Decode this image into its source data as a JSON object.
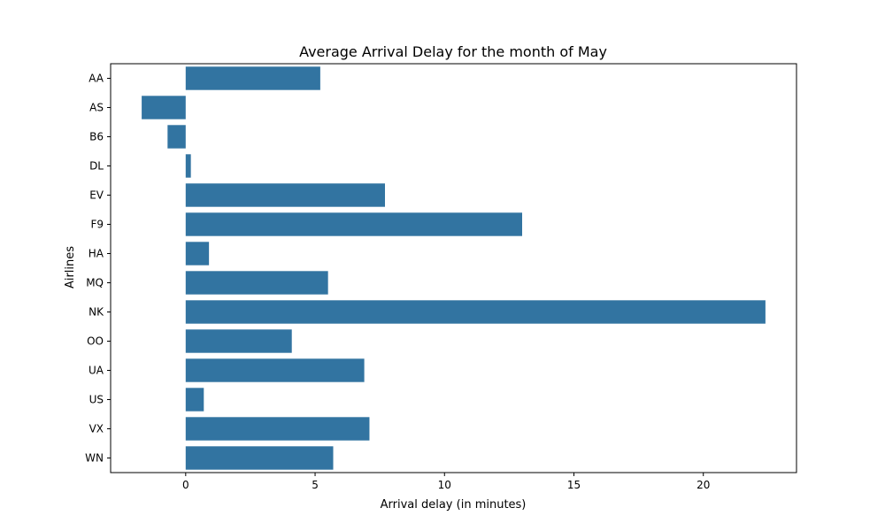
{
  "chart_data": {
    "type": "bar",
    "orientation": "horizontal",
    "title": "Average Arrival Delay for the month of May",
    "xlabel": "Arrival delay (in minutes)",
    "ylabel": "Airlines",
    "xlim": [
      -2.9,
      23.6
    ],
    "xticks": [
      0,
      5,
      10,
      15,
      20
    ],
    "grid": false,
    "bar_color": "#3274a1",
    "categories": [
      "AA",
      "AS",
      "B6",
      "DL",
      "EV",
      "F9",
      "HA",
      "MQ",
      "NK",
      "OO",
      "UA",
      "US",
      "VX",
      "WN"
    ],
    "values": [
      5.2,
      -1.7,
      -0.7,
      0.2,
      7.7,
      13.0,
      0.9,
      5.5,
      22.4,
      4.1,
      6.9,
      0.7,
      7.1,
      5.7
    ]
  }
}
